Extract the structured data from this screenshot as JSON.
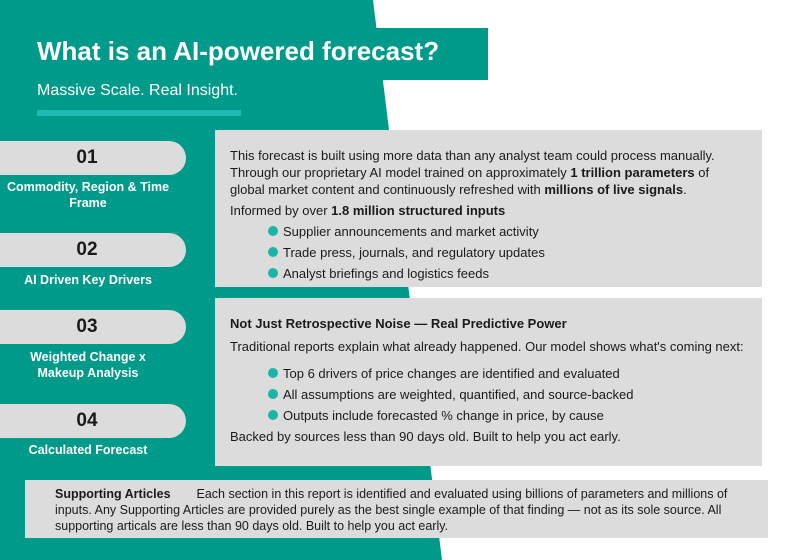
{
  "header": {
    "title": "What is an AI-powered forecast?",
    "subtitle": "Massive Scale. Real Insight."
  },
  "steps": [
    {
      "number": "01",
      "label": "Commodity, Region & Time Frame"
    },
    {
      "number": "02",
      "label": "AI Driven Key Drivers"
    },
    {
      "number": "03",
      "label": "Weighted Change x Makeup Analysis"
    },
    {
      "number": "04",
      "label": "Calculated Forecast"
    }
  ],
  "box1": {
    "intro_a": "This forecast is built using more data than any analyst team could process manually. Through our proprietary AI model trained on approximately ",
    "intro_b": "1 trillion parameters",
    "intro_c": " of global market content and continuously refreshed with ",
    "intro_d": "millions of live signals",
    "intro_e": ".",
    "informed_a": "Informed by over ",
    "informed_b": "1.8 million structured inputs",
    "bullets": [
      "Supplier announcements and market activity",
      "Trade press, journals, and regulatory updates",
      "Analyst briefings and logistics feeds"
    ]
  },
  "box2": {
    "heading": "Not Just Retrospective Noise — Real Predictive Power",
    "intro": "Traditional reports explain what already happened. Our model shows what's coming next:",
    "bullets": [
      "Top 6 drivers of price changes are identified and evaluated",
      "All assumptions are weighted, quantified, and source-backed",
      "Outputs include forecasted % change in price, by cause"
    ],
    "closing": "Backed by sources less than 90 days old. Built to help you act early."
  },
  "footer": {
    "label": "Supporting Articles",
    "text": "Each section in this report is identified and evaluated using billions of parameters and millions of inputs. Any Supporting Articles are provided purely as the best single example of that finding — not as its sole source. All supporting articals are less than 90 days old. Built to help you act early."
  },
  "colors": {
    "teal": "#009a8a",
    "accent": "#1fbab2",
    "panel": "#dcdcdc"
  }
}
